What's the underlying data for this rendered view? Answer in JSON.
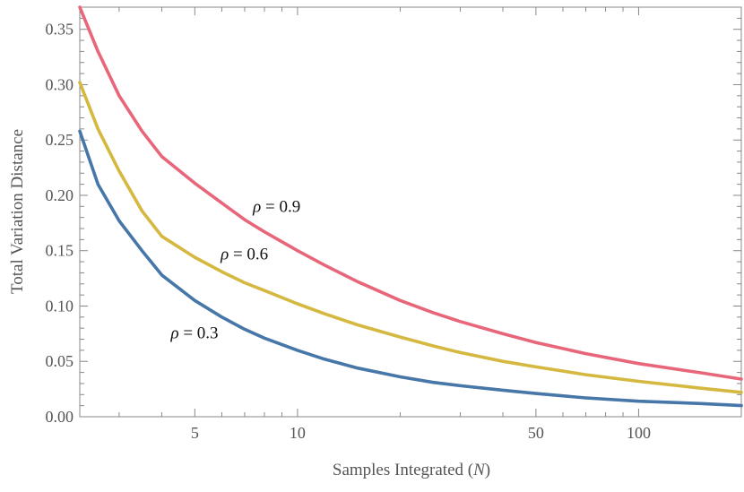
{
  "chart_data": {
    "type": "line",
    "xscale": "log",
    "xlim": [
      2.3,
      200
    ],
    "ylim": [
      0,
      0.37
    ],
    "xlabel": "Samples Integrated",
    "xlabel_var": "N",
    "ylabel": "Total Variation Distance",
    "xticks": [
      {
        "value": 5,
        "label": "5"
      },
      {
        "value": 10,
        "label": "10"
      },
      {
        "value": 50,
        "label": "50"
      },
      {
        "value": 100,
        "label": "100"
      }
    ],
    "yticks": [
      {
        "value": 0.0,
        "label": "0.00"
      },
      {
        "value": 0.05,
        "label": "0.05"
      },
      {
        "value": 0.1,
        "label": "0.10"
      },
      {
        "value": 0.15,
        "label": "0.15"
      },
      {
        "value": 0.2,
        "label": "0.20"
      },
      {
        "value": 0.25,
        "label": "0.25"
      },
      {
        "value": 0.3,
        "label": "0.30"
      },
      {
        "value": 0.35,
        "label": "0.35"
      }
    ],
    "series": [
      {
        "name": "rho = 0.9",
        "label_var": "ρ",
        "label_value": " = 0.9",
        "label_anchor": {
          "x": 7.4,
          "y": 0.185
        },
        "color": "#e8667a",
        "x": [
          2.3,
          2.6,
          3,
          3.5,
          4,
          5,
          6,
          7,
          8,
          10,
          12,
          15,
          20,
          25,
          30,
          40,
          50,
          70,
          100,
          150,
          200
        ],
        "y": [
          0.37,
          0.33,
          0.29,
          0.258,
          0.235,
          0.211,
          0.193,
          0.178,
          0.167,
          0.15,
          0.137,
          0.122,
          0.105,
          0.094,
          0.086,
          0.075,
          0.067,
          0.057,
          0.048,
          0.04,
          0.034
        ]
      },
      {
        "name": "rho = 0.6",
        "label_var": "ρ",
        "label_value": " = 0.6",
        "label_anchor": {
          "x": 5.95,
          "y": 0.142
        },
        "color": "#d4b840",
        "x": [
          2.3,
          2.6,
          3,
          3.5,
          4,
          5,
          6,
          7,
          8,
          10,
          12,
          15,
          20,
          25,
          30,
          40,
          50,
          70,
          100,
          150,
          200
        ],
        "y": [
          0.302,
          0.26,
          0.222,
          0.186,
          0.163,
          0.144,
          0.131,
          0.121,
          0.114,
          0.102,
          0.093,
          0.083,
          0.072,
          0.064,
          0.058,
          0.05,
          0.045,
          0.038,
          0.032,
          0.026,
          0.022
        ]
      },
      {
        "name": "rho = 0.3",
        "label_var": "ρ",
        "label_value": " = 0.3",
        "label_anchor": {
          "x": 4.25,
          "y": 0.071
        },
        "color": "#4677a8",
        "x": [
          2.3,
          2.6,
          3,
          3.5,
          4,
          5,
          6,
          7,
          8,
          10,
          12,
          15,
          20,
          25,
          30,
          40,
          50,
          70,
          100,
          150,
          200
        ],
        "y": [
          0.258,
          0.21,
          0.177,
          0.15,
          0.128,
          0.105,
          0.09,
          0.079,
          0.071,
          0.06,
          0.052,
          0.044,
          0.036,
          0.031,
          0.028,
          0.024,
          0.021,
          0.017,
          0.014,
          0.012,
          0.01
        ]
      }
    ]
  }
}
